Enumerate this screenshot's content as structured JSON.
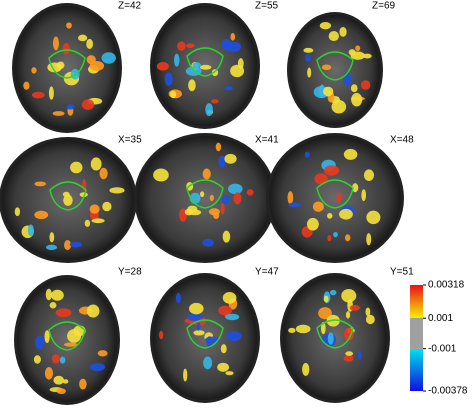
{
  "panels": [
    {
      "label": "Z=42"
    },
    {
      "label": "Z=55"
    },
    {
      "label": "Z=69"
    },
    {
      "label": "X=35"
    },
    {
      "label": "X=41"
    },
    {
      "label": "X=48"
    },
    {
      "label": "Y=28"
    },
    {
      "label": "Y=47"
    },
    {
      "label": "Y=51"
    }
  ],
  "colorbar": {
    "ticks": [
      0.00318,
      0.001,
      -0.001,
      -0.00378
    ]
  }
}
